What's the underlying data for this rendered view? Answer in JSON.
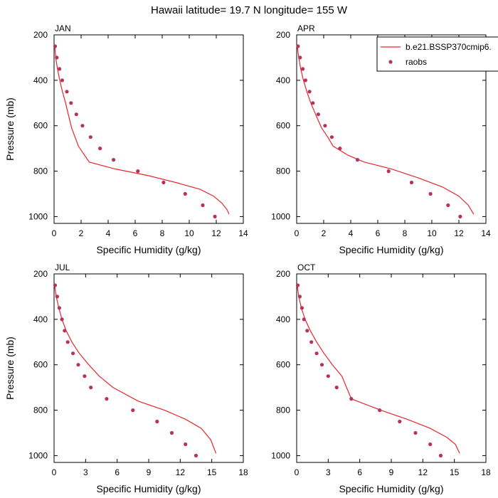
{
  "title": "Hawaii  latitude= 19.7 N longitude= 155 W",
  "colors": {
    "model": "#e8262b",
    "obs": "#b23560"
  },
  "legend": {
    "model_label": "b.e21.BSSP370cmip6.",
    "obs_label": "raobs",
    "placement": "top-right of APR panel"
  },
  "chart_data": [
    {
      "type": "line",
      "panel": "JAN",
      "xlabel": "Specific Humidity (g/kg)",
      "ylabel": "Pressure (mb)",
      "xlim": [
        0,
        14
      ],
      "xticks": [
        0,
        2,
        4,
        6,
        8,
        10,
        12,
        14
      ],
      "ylim": [
        200,
        1030
      ],
      "yticks": [
        200,
        400,
        600,
        800,
        1000
      ],
      "y_reversed": true,
      "series": [
        {
          "name": "b.e21.BSSP370cmip6.",
          "style": "line",
          "x": [
            0.05,
            0.12,
            0.25,
            0.42,
            0.62,
            0.85,
            1.05,
            1.3,
            1.8,
            2.6,
            4.5,
            7.0,
            9.0,
            10.8,
            11.8,
            12.4,
            12.8,
            12.95
          ],
          "y": [
            250,
            300,
            350,
            400,
            450,
            500,
            550,
            610,
            690,
            760,
            790,
            820,
            850,
            880,
            910,
            940,
            970,
            990
          ]
        },
        {
          "name": "raobs",
          "style": "markers",
          "x": [
            0.08,
            0.2,
            0.4,
            0.6,
            0.95,
            1.25,
            1.65,
            2.1,
            2.7,
            3.4,
            4.4,
            6.2,
            8.1,
            9.7,
            11.0,
            11.9
          ],
          "y": [
            250,
            300,
            350,
            400,
            450,
            500,
            550,
            600,
            650,
            700,
            750,
            800,
            850,
            900,
            950,
            1000
          ]
        }
      ]
    },
    {
      "type": "line",
      "panel": "APR",
      "xlabel": "Specific Humidity (g/kg)",
      "ylabel": "",
      "xlim": [
        0,
        14
      ],
      "xticks": [
        0,
        2,
        4,
        6,
        8,
        10,
        12,
        14
      ],
      "ylim": [
        200,
        1030
      ],
      "yticks": [
        200,
        400,
        600,
        800,
        1000
      ],
      "y_reversed": true,
      "series": [
        {
          "name": "b.e21.BSSP370cmip6.",
          "style": "line",
          "x": [
            0.05,
            0.15,
            0.3,
            0.5,
            0.75,
            1.05,
            1.4,
            1.85,
            2.3,
            2.7,
            3.8,
            5.0,
            7.0,
            9.0,
            10.8,
            12.0,
            12.7,
            13.1
          ],
          "y": [
            250,
            300,
            350,
            400,
            450,
            500,
            550,
            610,
            650,
            690,
            730,
            760,
            790,
            830,
            870,
            910,
            950,
            990
          ]
        },
        {
          "name": "raobs",
          "style": "markers",
          "x": [
            0.1,
            0.25,
            0.45,
            0.65,
            0.95,
            1.2,
            1.6,
            2.1,
            2.6,
            3.2,
            4.5,
            6.8,
            8.5,
            9.9,
            11.2,
            12.1
          ],
          "y": [
            250,
            300,
            350,
            400,
            450,
            500,
            550,
            600,
            650,
            700,
            750,
            800,
            850,
            900,
            950,
            1000
          ]
        }
      ]
    },
    {
      "type": "line",
      "panel": "JUL",
      "xlabel": "Specific Humidity (g/kg)",
      "ylabel": "Pressure (mb)",
      "xlim": [
        0,
        18
      ],
      "xticks": [
        0,
        3,
        6,
        9,
        12,
        15,
        18
      ],
      "ylim": [
        200,
        1030
      ],
      "yticks": [
        200,
        400,
        600,
        800,
        1000
      ],
      "y_reversed": true,
      "series": [
        {
          "name": "b.e21.BSSP370cmip6.",
          "style": "line",
          "x": [
            0.05,
            0.2,
            0.45,
            0.75,
            1.15,
            1.7,
            2.4,
            3.3,
            4.3,
            5.6,
            8.0,
            10.5,
            12.5,
            14.0,
            14.9,
            15.4
          ],
          "y": [
            250,
            300,
            350,
            400,
            450,
            500,
            550,
            600,
            650,
            700,
            760,
            800,
            840,
            880,
            930,
            990
          ]
        },
        {
          "name": "raobs",
          "style": "markers",
          "x": [
            0.1,
            0.3,
            0.5,
            0.75,
            1.0,
            1.3,
            1.8,
            2.3,
            2.9,
            3.5,
            5.0,
            7.5,
            9.8,
            11.2,
            12.5,
            13.5
          ],
          "y": [
            250,
            300,
            350,
            400,
            450,
            500,
            550,
            600,
            650,
            700,
            750,
            800,
            850,
            900,
            950,
            1000
          ]
        }
      ]
    },
    {
      "type": "line",
      "panel": "OCT",
      "xlabel": "Specific Humidity (g/kg)",
      "ylabel": "",
      "xlim": [
        0,
        18
      ],
      "xticks": [
        0,
        3,
        6,
        9,
        12,
        15,
        18
      ],
      "ylim": [
        200,
        1030
      ],
      "yticks": [
        200,
        400,
        600,
        800,
        1000
      ],
      "y_reversed": true,
      "series": [
        {
          "name": "b.e21.BSSP370cmip6.",
          "style": "line",
          "x": [
            0.05,
            0.2,
            0.45,
            0.8,
            1.3,
            1.9,
            2.6,
            3.4,
            4.3,
            5.2,
            8.0,
            10.5,
            12.7,
            14.3,
            15.1,
            15.5
          ],
          "y": [
            250,
            300,
            350,
            400,
            450,
            500,
            550,
            600,
            650,
            750,
            800,
            840,
            880,
            920,
            950,
            990
          ]
        },
        {
          "name": "raobs",
          "style": "markers",
          "x": [
            0.1,
            0.3,
            0.5,
            0.7,
            1.0,
            1.4,
            1.9,
            2.4,
            3.0,
            3.8,
            5.2,
            7.9,
            9.8,
            11.3,
            12.7,
            13.7
          ],
          "y": [
            250,
            300,
            350,
            400,
            450,
            500,
            550,
            600,
            650,
            700,
            750,
            800,
            850,
            900,
            950,
            1000
          ]
        }
      ]
    }
  ]
}
